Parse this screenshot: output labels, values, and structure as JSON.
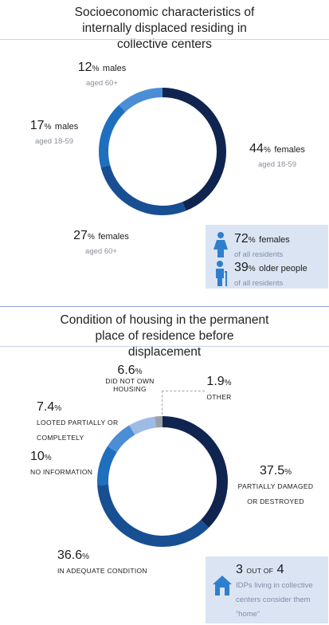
{
  "chart_data": [
    {
      "type": "pie",
      "title": "Socioeconomic characteristics of internally displaced residing in collective centers",
      "slices": [
        {
          "value": 44,
          "unit": "%",
          "label": "females",
          "sub": "aged 18-59",
          "color": "#0f2550"
        },
        {
          "value": 27,
          "unit": "%",
          "label": "females",
          "sub": "aged 60+",
          "color": "#184f93"
        },
        {
          "value": 17,
          "unit": "%",
          "label": "males",
          "sub": "aged 18-59",
          "color": "#1f6fbf"
        },
        {
          "value": 12,
          "unit": "%",
          "label": "males",
          "sub": "aged 60+",
          "color": "#4c8ed6"
        }
      ],
      "summary": [
        {
          "value": "72",
          "unit": "%",
          "label": "females",
          "sub": "of all residents",
          "icon": "female-person-icon"
        },
        {
          "value": "39",
          "unit": "%",
          "label": "older people",
          "sub": "of all residents",
          "icon": "elderly-person-icon"
        }
      ]
    },
    {
      "type": "pie",
      "title": "Condition of housing in the permanent place of residence before displacement",
      "slices": [
        {
          "value": 37.5,
          "unit": "%",
          "label": "PARTIALLY DAMAGED OR DESTROYED",
          "color": "#0f2550"
        },
        {
          "value": 36.6,
          "unit": "%",
          "label": "IN ADEQUATE CONDITION",
          "color": "#184f93"
        },
        {
          "value": 10,
          "unit": "%",
          "label": "NO INFORMATION",
          "color": "#1f6fbf"
        },
        {
          "value": 7.4,
          "unit": "%",
          "label": "LOOTED PARTIALLY OR COMPLETELY",
          "color": "#4c8ed6"
        },
        {
          "value": 6.6,
          "unit": "%",
          "label": "DID NOT OWN HOUSING",
          "color": "#9cbce6"
        },
        {
          "value": 1.9,
          "unit": "%",
          "label": "OTHER",
          "color": "#9aa0a8"
        }
      ],
      "note": {
        "value": "3",
        "mid": "OUT OF",
        "value2": "4",
        "text": "IDPs living in collective centers consider them “home”",
        "icon": "house-icon"
      }
    }
  ]
}
